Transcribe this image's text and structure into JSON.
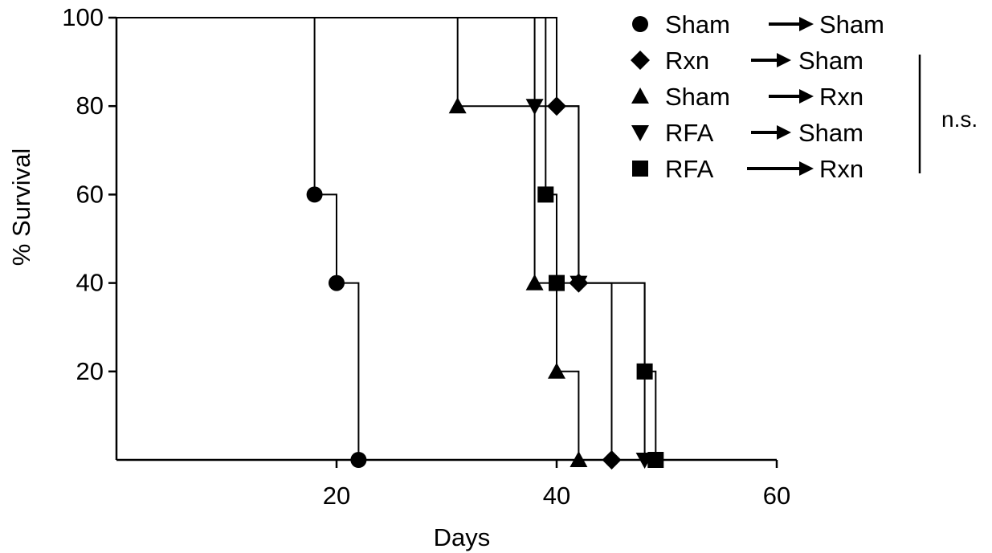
{
  "chart_data": {
    "type": "line",
    "step": true,
    "title": "",
    "xlabel": "Days",
    "ylabel": "% Survival",
    "xlim": [
      0,
      60
    ],
    "ylim": [
      0,
      100
    ],
    "xticks": [
      20,
      40,
      60
    ],
    "yticks": [
      20,
      40,
      60,
      80,
      100
    ],
    "grid": false,
    "legend_position": "top-right",
    "series": [
      {
        "name": "Sham ➞Sham",
        "from": "Sham",
        "to": "Sham",
        "marker": "circle",
        "x": [
          0,
          18,
          20,
          22
        ],
        "y": [
          100,
          60,
          40,
          0
        ]
      },
      {
        "name": "Rxn ➞ Sham",
        "from": "Rxn",
        "to": "Sham",
        "marker": "diamond",
        "x": [
          0,
          40,
          42,
          45
        ],
        "y": [
          100,
          80,
          40,
          0
        ]
      },
      {
        "name": "Sham ➞Rxn",
        "from": "Sham",
        "to": "Rxn",
        "marker": "triangle-up",
        "x": [
          0,
          31,
          38,
          40,
          42
        ],
        "y": [
          100,
          80,
          40,
          20,
          0
        ]
      },
      {
        "name": "RFA ➞ Sham",
        "from": "RFA",
        "to": "Sham",
        "marker": "triangle-down",
        "x": [
          0,
          38,
          42,
          48
        ],
        "y": [
          100,
          80,
          40,
          0
        ]
      },
      {
        "name": "RFA ➞Rxn",
        "from": "RFA",
        "to": "Rxn",
        "marker": "square",
        "x": [
          0,
          39,
          40,
          48,
          49
        ],
        "y": [
          100,
          60,
          40,
          20,
          0
        ]
      }
    ],
    "annotation": "n.s."
  }
}
